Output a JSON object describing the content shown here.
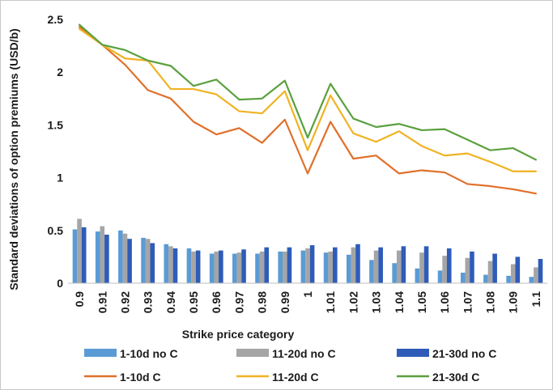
{
  "chart_data": {
    "type": "bar+line",
    "title": "",
    "xlabel": "Strike price category",
    "ylabel": "Standard deviations of option premiums (USD/b)",
    "ylim": [
      0,
      2.5
    ],
    "yticks": [
      "0",
      "0.5",
      "1",
      "1.5",
      "2",
      "2.5"
    ],
    "categories": [
      "0.9",
      "0.91",
      "0.92",
      "0.93",
      "0.94",
      "0.95",
      "0.96",
      "0.97",
      "0.98",
      "0.99",
      "1",
      "1.01",
      "1.02",
      "1.03",
      "1.04",
      "1.05",
      "1.06",
      "1.07",
      "1.08",
      "1.09",
      "1.1"
    ],
    "grid": false,
    "legend_position": "bottom",
    "series": [
      {
        "name": "1-10d no C",
        "kind": "bar",
        "color": "#5b9bd5",
        "values": [
          0.51,
          0.49,
          0.5,
          0.43,
          0.37,
          0.33,
          0.28,
          0.28,
          0.28,
          0.3,
          0.31,
          0.29,
          0.27,
          0.22,
          0.19,
          0.14,
          0.12,
          0.1,
          0.08,
          0.07,
          0.06
        ]
      },
      {
        "name": "11-20d no C",
        "kind": "bar",
        "color": "#a5a5a5",
        "values": [
          0.61,
          0.54,
          0.47,
          0.42,
          0.35,
          0.3,
          0.3,
          0.29,
          0.3,
          0.3,
          0.33,
          0.3,
          0.34,
          0.31,
          0.31,
          0.29,
          0.26,
          0.24,
          0.21,
          0.18,
          0.15
        ]
      },
      {
        "name": "21-30d no C",
        "kind": "bar",
        "color": "#2e5cb8",
        "values": [
          0.53,
          0.46,
          0.42,
          0.38,
          0.33,
          0.31,
          0.31,
          0.32,
          0.34,
          0.34,
          0.36,
          0.34,
          0.37,
          0.34,
          0.35,
          0.35,
          0.33,
          0.3,
          0.28,
          0.25,
          0.23
        ]
      },
      {
        "name": "1-10d C",
        "kind": "line",
        "color": "#e0702a",
        "values": [
          2.43,
          2.26,
          2.07,
          1.83,
          1.75,
          1.53,
          1.41,
          1.47,
          1.33,
          1.55,
          1.04,
          1.53,
          1.18,
          1.21,
          1.04,
          1.07,
          1.05,
          0.94,
          0.92,
          0.89,
          0.85
        ]
      },
      {
        "name": "11-20d C",
        "kind": "line",
        "color": "#f0b323",
        "values": [
          2.41,
          2.26,
          2.13,
          2.11,
          1.84,
          1.84,
          1.79,
          1.63,
          1.61,
          1.82,
          1.26,
          1.78,
          1.42,
          1.34,
          1.44,
          1.3,
          1.21,
          1.23,
          1.15,
          1.06,
          1.06
        ]
      },
      {
        "name": "21-30d C",
        "kind": "line",
        "color": "#5aa03e",
        "values": [
          2.45,
          2.26,
          2.21,
          2.11,
          2.06,
          1.87,
          1.93,
          1.74,
          1.75,
          1.92,
          1.38,
          1.89,
          1.56,
          1.48,
          1.51,
          1.45,
          1.46,
          1.36,
          1.26,
          1.28,
          1.17
        ]
      }
    ]
  }
}
